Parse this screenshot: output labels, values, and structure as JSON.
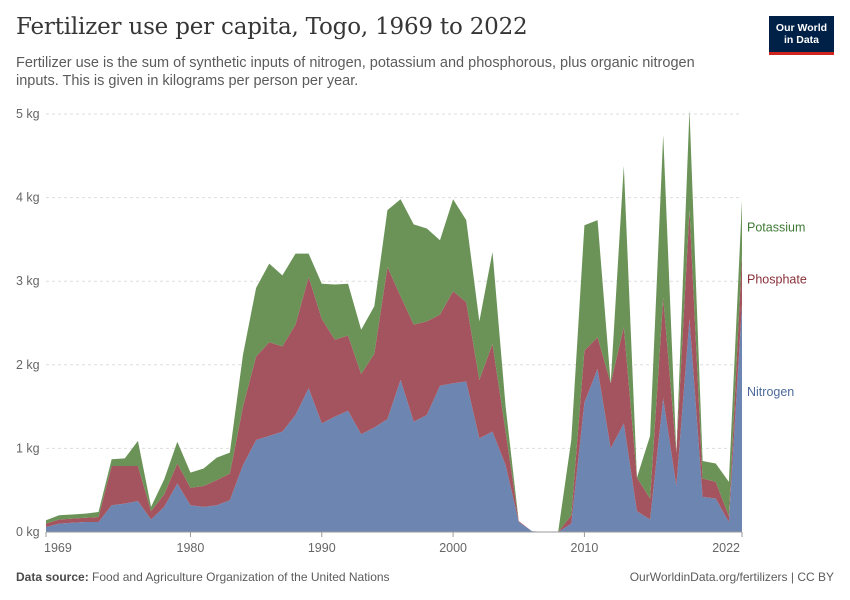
{
  "header": {
    "title": "Fertilizer use per capita, Togo, 1969 to 2022",
    "subtitle": "Fertilizer use is the sum of synthetic inputs of nitrogen, potassium and phosphorous, plus organic nitrogen inputs. This is given in kilograms per person per year."
  },
  "logo": {
    "line1": "Our World",
    "line2": "in Data"
  },
  "footer": {
    "source_label": "Data source:",
    "source_text": "Food and Agriculture Organization of the United Nations",
    "right_text": "OurWorldinData.org/fertilizers | CC BY"
  },
  "colors": {
    "nitrogen": "#6d86b1",
    "phosphate": "#a4545f",
    "potassium": "#6b9358",
    "nitrogen_label": "#4c6a9c",
    "phosphate_label": "#883039",
    "potassium_label": "#3f7a34"
  },
  "chart_data": {
    "type": "area",
    "stacked": true,
    "y_ticks": [
      "0 kg",
      "1 kg",
      "2 kg",
      "3 kg",
      "4 kg",
      "5 kg"
    ],
    "y_tick_values": [
      0,
      1,
      2,
      3,
      4,
      5
    ],
    "x_ticks": [
      "1969",
      "1980",
      "1990",
      "2000",
      "2010",
      "2022"
    ],
    "x_tick_values": [
      1969,
      1980,
      1990,
      2000,
      2010,
      2022
    ],
    "xlim": [
      1969,
      2022
    ],
    "ylim": [
      0,
      5
    ],
    "grid": "horizontal dashed",
    "x": [
      1969,
      1970,
      1971,
      1972,
      1973,
      1974,
      1975,
      1976,
      1977,
      1978,
      1979,
      1980,
      1981,
      1982,
      1983,
      1984,
      1985,
      1986,
      1987,
      1988,
      1989,
      1990,
      1991,
      1992,
      1993,
      1994,
      1995,
      1996,
      1997,
      1998,
      1999,
      2000,
      2001,
      2002,
      2003,
      2004,
      2005,
      2006,
      2007,
      2008,
      2009,
      2010,
      2011,
      2012,
      2013,
      2014,
      2015,
      2016,
      2017,
      2018,
      2019,
      2020,
      2021,
      2022
    ],
    "series": [
      {
        "name": "Nitrogen",
        "values": [
          0.06,
          0.1,
          0.11,
          0.12,
          0.12,
          0.32,
          0.34,
          0.37,
          0.15,
          0.3,
          0.58,
          0.32,
          0.3,
          0.32,
          0.38,
          0.8,
          1.1,
          1.15,
          1.2,
          1.4,
          1.72,
          1.3,
          1.38,
          1.45,
          1.17,
          1.25,
          1.35,
          1.82,
          1.32,
          1.4,
          1.75,
          1.78,
          1.8,
          1.12,
          1.2,
          0.8,
          0.12,
          0.01,
          0.0,
          0.0,
          0.1,
          1.55,
          1.95,
          1.0,
          1.3,
          0.25,
          0.15,
          1.6,
          0.55,
          2.55,
          0.42,
          0.4,
          0.12,
          2.72
        ]
      },
      {
        "name": "Phosphate",
        "values": [
          0.04,
          0.05,
          0.05,
          0.05,
          0.06,
          0.47,
          0.45,
          0.42,
          0.1,
          0.15,
          0.24,
          0.21,
          0.25,
          0.3,
          0.32,
          0.7,
          1.0,
          1.12,
          1.02,
          1.08,
          1.33,
          1.25,
          0.92,
          0.9,
          0.72,
          0.88,
          1.82,
          1.0,
          1.16,
          1.12,
          0.85,
          1.1,
          0.95,
          0.7,
          1.05,
          0.4,
          0.01,
          0.0,
          0.0,
          0.0,
          0.1,
          0.62,
          0.38,
          0.78,
          1.15,
          0.4,
          0.25,
          1.2,
          0.4,
          1.3,
          0.22,
          0.2,
          0.07,
          0.6
        ]
      },
      {
        "name": "Potassium",
        "values": [
          0.04,
          0.05,
          0.05,
          0.05,
          0.06,
          0.08,
          0.09,
          0.3,
          0.05,
          0.18,
          0.26,
          0.18,
          0.21,
          0.27,
          0.25,
          0.62,
          0.82,
          0.94,
          0.85,
          0.85,
          0.28,
          0.42,
          0.66,
          0.62,
          0.53,
          0.57,
          0.68,
          1.16,
          1.2,
          1.11,
          0.89,
          1.1,
          0.98,
          0.7,
          1.1,
          0.3,
          0.0,
          0.0,
          0.0,
          0.0,
          0.9,
          1.5,
          1.4,
          0.0,
          1.93,
          0.0,
          0.75,
          1.95,
          0.0,
          1.2,
          0.21,
          0.22,
          0.41,
          0.65
        ]
      }
    ],
    "series_labels": [
      "Potassium",
      "Phosphate",
      "Nitrogen"
    ]
  }
}
